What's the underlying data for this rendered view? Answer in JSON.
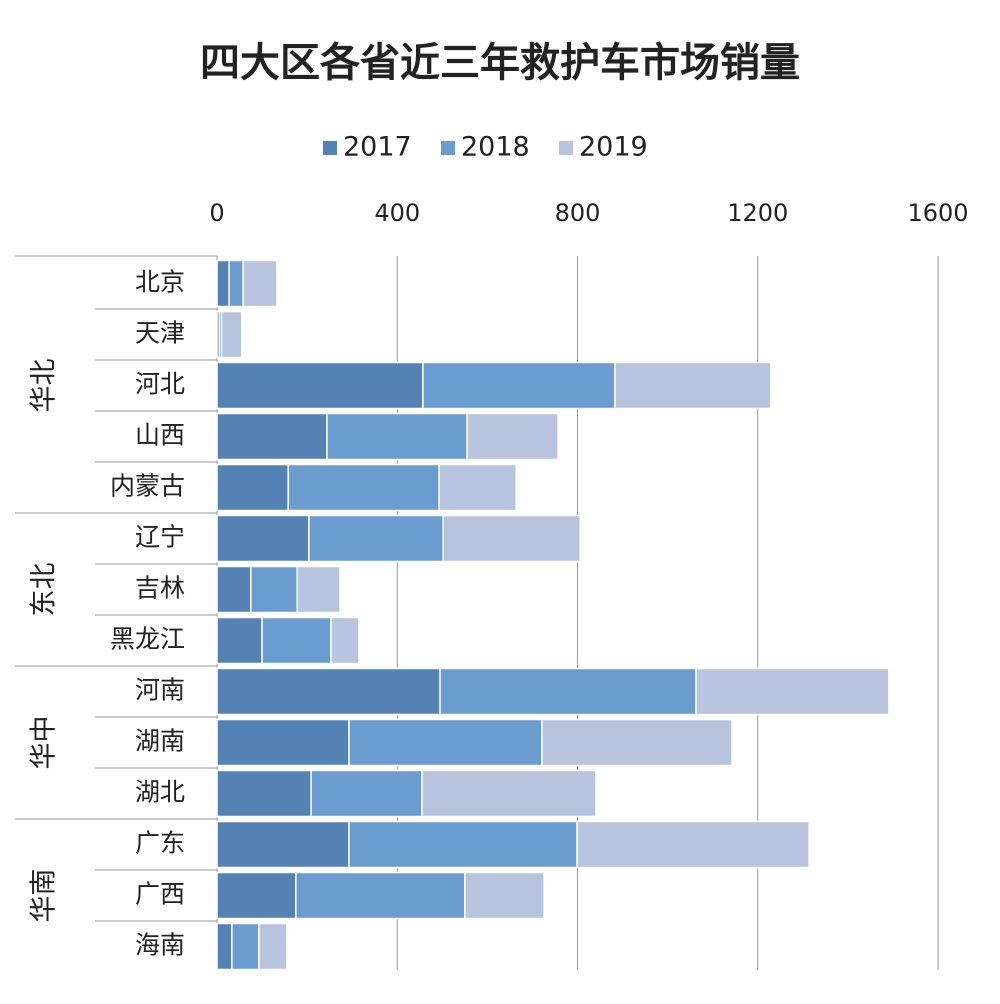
{
  "chart_data": {
    "type": "stacked-barh",
    "title": "四大区各省近三年救护车市场销量",
    "groups": [
      {
        "name": "华北",
        "categories": [
          "北京",
          "天津",
          "河北",
          "山西",
          "内蒙古"
        ]
      },
      {
        "name": "东北",
        "categories": [
          "辽宁",
          "吉林",
          "黑龙江"
        ]
      },
      {
        "name": "华中",
        "categories": [
          "河南",
          "湖南",
          "湖北"
        ]
      },
      {
        "name": "华南",
        "categories": [
          "广东",
          "广西",
          "海南"
        ]
      }
    ],
    "series": [
      {
        "name": "2017",
        "color": "#5582b4",
        "values": [
          27,
          5,
          457,
          244,
          158,
          204,
          75,
          100,
          495,
          293,
          209,
          293,
          175,
          33
        ]
      },
      {
        "name": "2018",
        "color": "#6a9ccf",
        "values": [
          31,
          5,
          426,
          311,
          335,
          298,
          103,
          153,
          568,
          428,
          246,
          506,
          375,
          60
        ]
      },
      {
        "name": "2019",
        "color": "#b8c4de",
        "values": [
          75,
          45,
          346,
          202,
          171,
          304,
          95,
          62,
          428,
          422,
          386,
          515,
          176,
          62
        ]
      }
    ],
    "xlim": [
      0,
      1600
    ],
    "xticks": [
      0,
      400,
      800,
      1200,
      1600
    ],
    "grid": true,
    "legend": "top"
  }
}
